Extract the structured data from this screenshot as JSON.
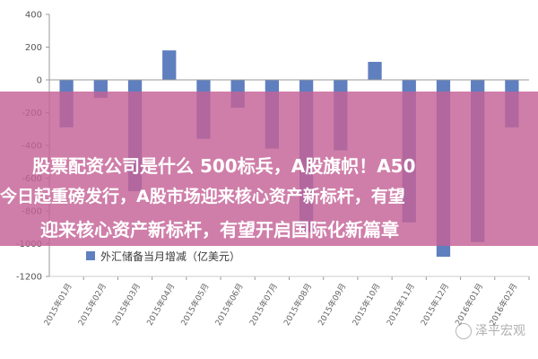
{
  "chart_data": {
    "type": "bar",
    "categories": [
      "2015年01月",
      "2015年02月",
      "2015年03月",
      "2015年04月",
      "2015年05月",
      "2015年06月",
      "2015年07月",
      "2015年08月",
      "2015年09月",
      "2015年10月",
      "2015年11月",
      "2015年12月",
      "2016年01月",
      "2016年02月"
    ],
    "series": [
      {
        "name": "外汇储备当月增减（亿美元）",
        "values": [
          -290,
          -110,
          -680,
          180,
          -360,
          -170,
          -420,
          -930,
          -430,
          110,
          -870,
          -1080,
          -990,
          -290
        ]
      }
    ],
    "yticks": [
      400,
      200,
      0,
      -200,
      -400,
      -600,
      -800,
      -1000,
      -1200
    ],
    "ylim": [
      -1200,
      400
    ],
    "grid": false,
    "legend": "bottom-left",
    "bar_color": "#5f7fbf"
  },
  "banner": {
    "line1": "股票配资公司是什么 500标兵，A股旗帜！A50",
    "line2": "今日起重磅发行，A股市场迎来核心资产新标杆，有望",
    "line3": "迎来核心资产新标杆，有望开启国际化新篇章"
  },
  "watermark": {
    "text": "泽平宏观"
  }
}
